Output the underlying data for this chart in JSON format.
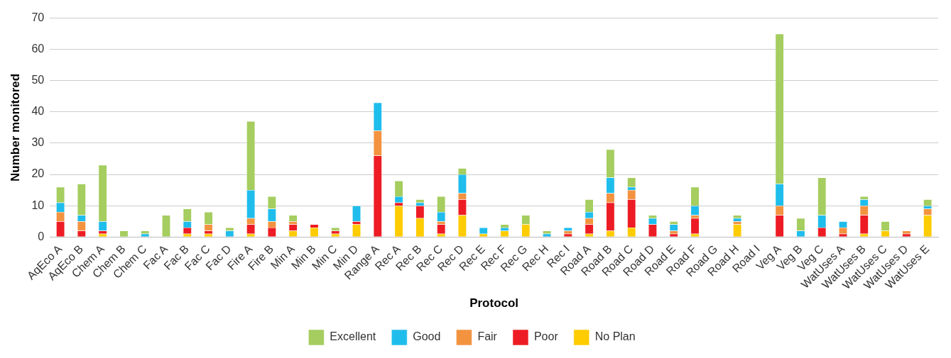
{
  "chart_data": {
    "type": "bar",
    "stacked": true,
    "xlabel": "Protocol",
    "ylabel": "Number monitored",
    "categories": [
      "AqEco A",
      "AqEco B",
      "Chem A",
      "Chem B",
      "Chem C",
      "Fac A",
      "Fac B",
      "Fac C",
      "Fac D",
      "Fire A",
      "Fire B",
      "Min A",
      "Min B",
      "Min C",
      "Min D",
      "Range A",
      "Rec A",
      "Rec B",
      "Rec C",
      "Rec D",
      "Rec E",
      "Rec F",
      "Rec G",
      "Rec H",
      "Rec I",
      "Road A",
      "Road B",
      "Road C",
      "Road D",
      "Road E",
      "Road F",
      "Road G",
      "Road H",
      "Road I",
      "Veg A",
      "Veg B",
      "Veg C",
      "WatUses A",
      "WatUses B",
      "WatUses C",
      "WatUses D",
      "WatUses E"
    ],
    "series": [
      {
        "name": "No Plan",
        "color": "#ffcc00",
        "values": [
          0,
          0,
          1,
          0,
          0,
          0,
          1,
          1,
          0,
          1,
          0,
          2,
          3,
          1,
          4,
          0,
          10,
          6,
          1,
          7,
          1,
          2,
          4,
          0,
          0,
          1,
          2,
          3,
          0,
          0,
          1,
          0,
          4,
          0,
          0,
          0,
          0,
          0,
          1,
          2,
          0,
          7
        ]
      },
      {
        "name": "Poor",
        "color": "#ed1c24",
        "values": [
          5,
          2,
          1,
          0,
          0,
          0,
          2,
          1,
          0,
          3,
          3,
          2,
          1,
          1,
          1,
          26,
          1,
          4,
          3,
          5,
          0,
          0,
          0,
          0,
          1,
          3,
          9,
          9,
          4,
          1,
          5,
          0,
          0,
          0,
          7,
          0,
          3,
          1,
          6,
          0,
          1,
          0
        ]
      },
      {
        "name": "Fair",
        "color": "#f39340",
        "values": [
          3,
          3,
          0,
          0,
          0,
          0,
          0,
          2,
          0,
          2,
          2,
          1,
          0,
          0,
          0,
          8,
          0,
          0,
          1,
          2,
          0,
          0,
          0,
          0,
          1,
          2,
          3,
          3,
          0,
          1,
          1,
          0,
          1,
          0,
          3,
          0,
          0,
          2,
          3,
          0,
          1,
          2
        ]
      },
      {
        "name": "Good",
        "color": "#1fbdec",
        "values": [
          3,
          2,
          3,
          0,
          1,
          0,
          2,
          0,
          2,
          9,
          4,
          0,
          0,
          0,
          5,
          9,
          2,
          1,
          3,
          6,
          2,
          1,
          0,
          1,
          1,
          2,
          5,
          1,
          2,
          2,
          3,
          0,
          1,
          0,
          7,
          2,
          4,
          2,
          2,
          0,
          0,
          1
        ]
      },
      {
        "name": "Excellent",
        "color": "#a5cd5f",
        "values": [
          5,
          10,
          18,
          2,
          1,
          7,
          4,
          4,
          1,
          22,
          4,
          2,
          0,
          1,
          0,
          0,
          5,
          1,
          5,
          2,
          0,
          1,
          3,
          1,
          0,
          4,
          9,
          3,
          1,
          1,
          6,
          0,
          1,
          0,
          48,
          4,
          12,
          0,
          1,
          3,
          0,
          2
        ]
      }
    ],
    "ylim": [
      0,
      70
    ],
    "yticks": [
      0,
      10,
      20,
      30,
      40,
      50,
      60,
      70
    ],
    "grid": "y",
    "legend": "bottom"
  }
}
